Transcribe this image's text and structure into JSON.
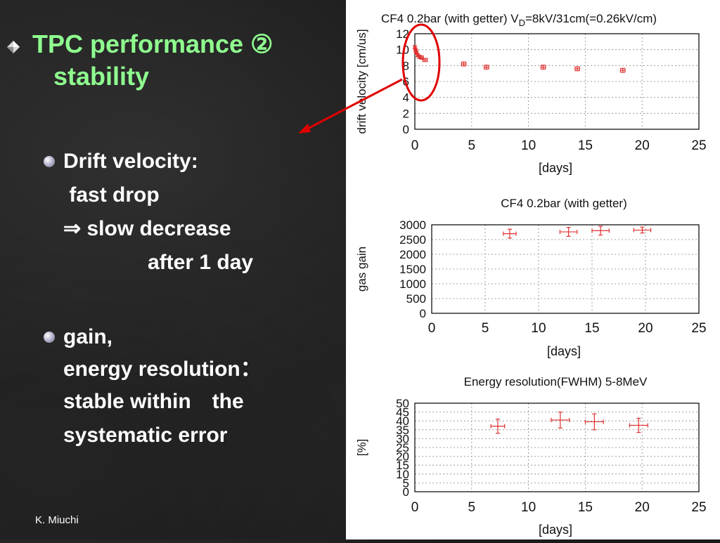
{
  "slide": {
    "title_line1": "TPC performance ②",
    "title_line2": "stability",
    "bullets": [
      {
        "lines": [
          "Drift velocity:",
          " fast drop",
          "⇒ slow decrease",
          "after 1 day"
        ]
      },
      {
        "lines": [
          "gain,",
          "energy resolution：",
          "stable within　the",
          "systematic error"
        ]
      }
    ],
    "footer": "K. Miuchi",
    "colors": {
      "title": "#8fff8f",
      "text": "#ffffff",
      "marker": "#e03030",
      "annotation": "#e00000"
    }
  },
  "chart_data": [
    {
      "type": "scatter",
      "title": "CF4 0.2bar (with getter) V",
      "title_sub": "D",
      "title_suffix": "=8kV/31cm(=0.26kV/cm)",
      "xlabel": "[days]",
      "ylabel": "drift velocity [cm/us]",
      "xlim": [
        0,
        25
      ],
      "ylim": [
        0,
        12
      ],
      "xticks": [
        0,
        5,
        10,
        15,
        20,
        25
      ],
      "yticks": [
        0,
        2,
        4,
        6,
        8,
        10,
        12
      ],
      "grid": true,
      "points": [
        {
          "x": 0.0,
          "y": 10.3,
          "xerr": 0.1,
          "yerr": 0.2
        },
        {
          "x": 0.05,
          "y": 10.0,
          "xerr": 0.1,
          "yerr": 0.2
        },
        {
          "x": 0.1,
          "y": 9.8,
          "xerr": 0.1,
          "yerr": 0.2
        },
        {
          "x": 0.15,
          "y": 9.6,
          "xerr": 0.1,
          "yerr": 0.2
        },
        {
          "x": 0.25,
          "y": 9.3,
          "xerr": 0.1,
          "yerr": 0.2
        },
        {
          "x": 0.4,
          "y": 9.1,
          "xerr": 0.1,
          "yerr": 0.2
        },
        {
          "x": 0.6,
          "y": 9.0,
          "xerr": 0.15,
          "yerr": 0.2
        },
        {
          "x": 0.9,
          "y": 8.7,
          "xerr": 0.2,
          "yerr": 0.2
        },
        {
          "x": 4.3,
          "y": 8.2,
          "xerr": 0.2,
          "yerr": 0.25
        },
        {
          "x": 6.3,
          "y": 7.8,
          "xerr": 0.2,
          "yerr": 0.25
        },
        {
          "x": 11.3,
          "y": 7.8,
          "xerr": 0.2,
          "yerr": 0.25
        },
        {
          "x": 14.3,
          "y": 7.6,
          "xerr": 0.2,
          "yerr": 0.25
        },
        {
          "x": 18.3,
          "y": 7.4,
          "xerr": 0.2,
          "yerr": 0.25
        }
      ]
    },
    {
      "type": "scatter",
      "title": "CF4 0.2bar (with getter)",
      "xlabel": "[days]",
      "ylabel": "gas gain",
      "xlim": [
        0,
        25
      ],
      "ylim": [
        0,
        3000
      ],
      "xticks": [
        0,
        5,
        10,
        15,
        20,
        25
      ],
      "yticks": [
        0,
        500,
        1000,
        1500,
        2000,
        2500,
        3000
      ],
      "grid": true,
      "points": [
        {
          "x": 7.3,
          "y": 2700,
          "xerr": 0.6,
          "yerr": 150
        },
        {
          "x": 12.8,
          "y": 2760,
          "xerr": 0.8,
          "yerr": 150
        },
        {
          "x": 15.8,
          "y": 2800,
          "xerr": 0.8,
          "yerr": 150
        },
        {
          "x": 19.7,
          "y": 2820,
          "xerr": 0.8,
          "yerr": 100
        }
      ]
    },
    {
      "type": "scatter",
      "title": "Energy resolution(FWHM) 5-8MeV",
      "xlabel": "[days]",
      "ylabel": "[%]",
      "xlim": [
        0,
        25
      ],
      "ylim": [
        0,
        50
      ],
      "xticks": [
        0,
        5,
        10,
        15,
        20,
        25
      ],
      "yticks": [
        0,
        5,
        10,
        15,
        20,
        25,
        30,
        35,
        40,
        45,
        50
      ],
      "grid": true,
      "points": [
        {
          "x": 7.3,
          "y": 37,
          "xerr": 0.6,
          "yerr": 4
        },
        {
          "x": 12.8,
          "y": 40.5,
          "xerr": 0.8,
          "yerr": 4.5
        },
        {
          "x": 15.8,
          "y": 39.5,
          "xerr": 0.8,
          "yerr": 4.5
        },
        {
          "x": 19.7,
          "y": 37.5,
          "xerr": 0.8,
          "yerr": 4
        }
      ]
    }
  ]
}
